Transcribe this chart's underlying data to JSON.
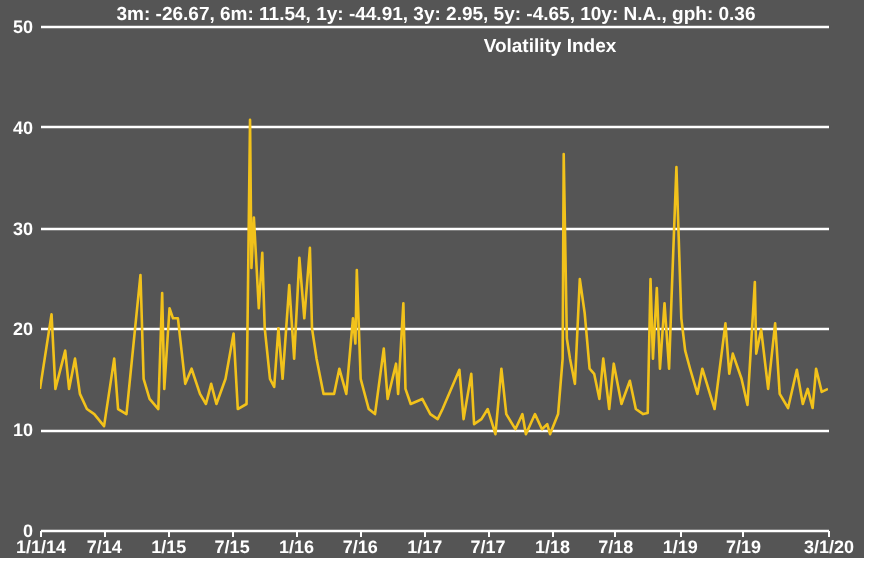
{
  "chart_data": {
    "type": "line",
    "title": "Volatility Index",
    "annotations": [
      "3m: -26.67,   6m: 11.54,   1y: -44.91,   3y: 2.95,   5y: -4.65,   10y: N.A.,   gph: 0.36"
    ],
    "x": [
      "2014-01-01",
      "2014-02-03",
      "2014-02-14",
      "2014-03-14",
      "2014-03-25",
      "2014-04-11",
      "2014-04-25",
      "2014-05-15",
      "2014-06-05",
      "2014-07-03",
      "2014-08-01",
      "2014-08-12",
      "2014-09-05",
      "2014-10-15",
      "2014-10-24",
      "2014-11-10",
      "2014-12-05",
      "2014-12-16",
      "2014-12-22",
      "2015-01-06",
      "2015-01-16",
      "2015-01-30",
      "2015-02-20",
      "2015-03-10",
      "2015-04-03",
      "2015-04-20",
      "2015-05-05",
      "2015-05-20",
      "2015-06-15",
      "2015-07-08",
      "2015-07-20",
      "2015-08-14",
      "2015-08-24",
      "2015-08-28",
      "2015-09-04",
      "2015-09-18",
      "2015-09-28",
      "2015-10-05",
      "2015-10-20",
      "2015-11-01",
      "2015-11-13",
      "2015-11-25",
      "2015-12-14",
      "2015-12-28",
      "2016-01-12",
      "2016-01-26",
      "2016-02-11",
      "2016-02-17",
      "2016-03-01",
      "2016-03-21",
      "2016-04-20",
      "2016-05-05",
      "2016-05-25",
      "2016-06-13",
      "2016-06-20",
      "2016-06-24",
      "2016-07-05",
      "2016-07-28",
      "2016-08-15",
      "2016-09-09",
      "2016-09-20",
      "2016-10-14",
      "2016-10-20",
      "2016-11-04",
      "2016-11-10",
      "2016-11-25",
      "2016-12-28",
      "2017-01-20",
      "2017-02-10",
      "2017-02-24",
      "2017-04-13",
      "2017-04-25",
      "2017-05-17",
      "2017-05-25",
      "2017-06-15",
      "2017-07-03",
      "2017-07-25",
      "2017-08-11",
      "2017-08-25",
      "2017-09-20",
      "2017-10-10",
      "2017-10-20",
      "2017-11-15",
      "2017-12-05",
      "2017-12-20",
      "2017-12-28",
      "2018-01-20",
      "2018-02-02",
      "2018-02-05",
      "2018-02-14",
      "2018-02-23",
      "2018-03-09",
      "2018-03-23",
      "2018-04-06",
      "2018-04-20",
      "2018-05-03",
      "2018-05-18",
      "2018-05-29",
      "2018-06-15",
      "2018-06-28",
      "2018-07-20",
      "2018-08-13",
      "2018-08-30",
      "2018-09-20",
      "2018-10-03",
      "2018-10-11",
      "2018-10-18",
      "2018-10-29",
      "2018-11-07",
      "2018-11-20",
      "2018-12-03",
      "2018-12-10",
      "2018-12-24",
      "2019-01-07",
      "2019-01-18",
      "2019-02-01",
      "2019-02-22",
      "2019-03-08",
      "2019-04-12",
      "2019-05-13",
      "2019-05-24",
      "2019-06-03",
      "2019-06-28",
      "2019-07-15",
      "2019-08-05",
      "2019-08-09",
      "2019-08-23",
      "2019-09-12",
      "2019-10-02",
      "2019-10-15",
      "2019-11-08",
      "2019-12-03",
      "2019-12-20",
      "2020-01-03",
      "2020-01-17",
      "2020-01-27",
      "2020-02-12",
      "2020-03-01"
    ],
    "series": [
      {
        "color": "#f2c21b",
        "values": [
          14,
          21.4,
          14,
          17.8,
          14,
          17,
          13.5,
          12,
          11.5,
          10.3,
          17,
          12,
          11.5,
          25.3,
          15,
          13,
          12,
          23.5,
          14,
          22,
          21,
          21,
          14.5,
          16,
          13.5,
          12.5,
          14.5,
          12.5,
          15,
          19.5,
          12,
          12.5,
          40.7,
          26,
          31,
          22,
          27.5,
          20,
          15,
          14.2,
          20,
          15,
          24.3,
          17,
          27,
          21,
          28,
          20,
          17,
          13.5,
          13.5,
          16,
          13.5,
          21,
          18.5,
          25.8,
          15,
          12,
          11.5,
          18,
          13,
          16.5,
          13.5,
          22.5,
          14,
          12.5,
          13,
          11.5,
          11,
          12,
          15.9,
          11,
          15.5,
          10.5,
          11,
          12,
          9.5,
          16,
          11.5,
          10,
          11.5,
          9.5,
          11.5,
          10,
          10.5,
          9.5,
          11.5,
          17,
          37.3,
          19,
          17,
          14.5,
          24.9,
          21.5,
          16,
          15.5,
          13,
          17,
          12,
          16.5,
          12.5,
          14.8,
          12,
          11.5,
          11.6,
          24.9,
          17,
          24,
          16,
          22.5,
          16,
          23,
          36,
          21,
          17.8,
          16,
          13.5,
          16,
          12,
          20.5,
          15.5,
          17.5,
          15,
          12.4,
          24.6,
          17.5,
          19.9,
          14,
          20.5,
          13.5,
          12.1,
          15.9,
          12.5,
          14,
          12.1,
          16,
          13.7,
          14
        ]
      }
    ],
    "xlim": [
      "2014-01-01",
      "2020-03-01"
    ],
    "xticks": [
      {
        "value": "2014-01-01",
        "label": "1/1/14"
      },
      {
        "value": "2014-07-01",
        "label": "7/14"
      },
      {
        "value": "2015-01-01",
        "label": "1/15"
      },
      {
        "value": "2015-07-01",
        "label": "7/15"
      },
      {
        "value": "2016-01-01",
        "label": "1/16"
      },
      {
        "value": "2016-07-01",
        "label": "7/16"
      },
      {
        "value": "2017-01-01",
        "label": "1/17"
      },
      {
        "value": "2017-07-01",
        "label": "7/17"
      },
      {
        "value": "2018-01-01",
        "label": "1/18"
      },
      {
        "value": "2018-07-01",
        "label": "7/18"
      },
      {
        "value": "2019-01-01",
        "label": "1/19"
      },
      {
        "value": "2019-07-01",
        "label": "7/19"
      },
      {
        "value": "2020-03-01",
        "label": "3/1/20"
      }
    ],
    "ylim": [
      0,
      50
    ],
    "yticks": [
      0,
      10,
      20,
      30,
      40,
      50
    ],
    "grid": "y"
  }
}
